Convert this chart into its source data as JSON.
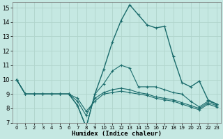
{
  "xlabel": "Humidex (Indice chaleur)",
  "xlim": [
    -0.5,
    23.5
  ],
  "ylim": [
    7,
    15.4
  ],
  "yticks": [
    7,
    8,
    9,
    10,
    11,
    12,
    13,
    14,
    15
  ],
  "xticks": [
    0,
    1,
    2,
    3,
    4,
    5,
    6,
    7,
    8,
    9,
    10,
    11,
    12,
    13,
    14,
    15,
    16,
    17,
    18,
    19,
    20,
    21,
    22,
    23
  ],
  "background_color": "#c5e8e2",
  "grid_color": "#b0d4cc",
  "line_color": "#1a6b6b",
  "lines": [
    [
      10,
      9,
      9,
      9,
      9,
      9,
      9,
      8.2,
      6.7,
      9.0,
      10.7,
      12.6,
      14.1,
      15.2,
      14.5,
      13.8,
      13.6,
      13.7,
      11.6,
      9.8,
      9.5,
      9.9,
      8.6,
      8.3
    ],
    [
      10,
      9,
      9,
      9,
      9,
      9,
      9,
      8.2,
      6.7,
      9.0,
      9.7,
      10.6,
      11.0,
      10.8,
      9.5,
      9.5,
      9.5,
      9.3,
      9.1,
      9.0,
      8.5,
      8.1,
      8.5,
      8.3
    ],
    [
      10,
      9,
      9,
      9,
      9,
      9,
      9,
      8.5,
      7.5,
      8.7,
      9.1,
      9.3,
      9.4,
      9.3,
      9.1,
      9.0,
      8.8,
      8.7,
      8.6,
      8.4,
      8.2,
      8.0,
      8.4,
      8.2
    ],
    [
      10,
      9,
      9,
      9,
      9,
      9,
      9,
      8.7,
      7.8,
      8.5,
      9.0,
      9.1,
      9.2,
      9.1,
      9.0,
      8.9,
      8.7,
      8.6,
      8.5,
      8.3,
      8.1,
      7.9,
      8.3,
      8.1
    ]
  ]
}
